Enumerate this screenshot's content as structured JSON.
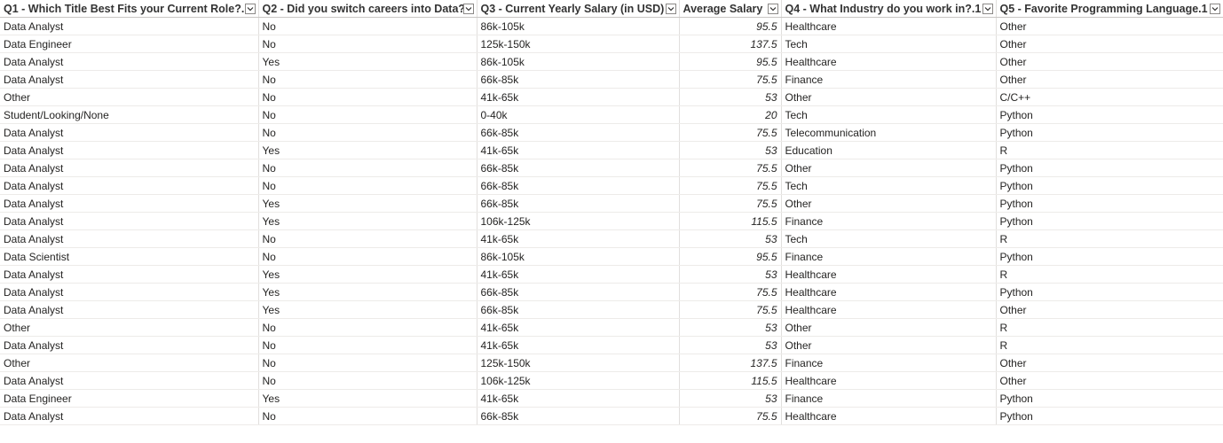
{
  "table": {
    "columns": [
      {
        "label": "Q1 - Which Title Best Fits your Current Role?.1",
        "icon": "chevron-down-icon"
      },
      {
        "label": "Q2 - Did you switch careers into Data?",
        "icon": "chevron-down-icon"
      },
      {
        "label": "Q3 - Current Yearly Salary (in USD)",
        "icon": "chevron-down-icon"
      },
      {
        "label": "Average Salary",
        "icon": "chevron-down-icon"
      },
      {
        "label": "Q4 - What Industry do you work in?.1",
        "icon": "chevron-down-icon"
      },
      {
        "label": "Q5 - Favorite Programming Language.1",
        "icon": "chevron-down-icon"
      }
    ],
    "rows": [
      [
        "Data Analyst",
        "No",
        "86k-105k",
        "95.5",
        "Healthcare",
        "Other"
      ],
      [
        "Data Engineer",
        "No",
        "125k-150k",
        "137.5",
        "Tech",
        "Other"
      ],
      [
        "Data Analyst",
        "Yes",
        "86k-105k",
        "95.5",
        "Healthcare",
        "Other"
      ],
      [
        "Data Analyst",
        "No",
        "66k-85k",
        "75.5",
        "Finance",
        "Other"
      ],
      [
        "Other",
        "No",
        "41k-65k",
        "53",
        "Other",
        "C/C++"
      ],
      [
        "Student/Looking/None",
        "No",
        "0-40k",
        "20",
        "Tech",
        "Python"
      ],
      [
        "Data Analyst",
        "No",
        "66k-85k",
        "75.5",
        "Telecommunication",
        "Python"
      ],
      [
        "Data Analyst",
        "Yes",
        "41k-65k",
        "53",
        "Education",
        "R"
      ],
      [
        "Data Analyst",
        "No",
        "66k-85k",
        "75.5",
        "Other",
        "Python"
      ],
      [
        "Data Analyst",
        "No",
        "66k-85k",
        "75.5",
        "Tech",
        "Python"
      ],
      [
        "Data Analyst",
        "Yes",
        "66k-85k",
        "75.5",
        "Other",
        "Python"
      ],
      [
        "Data Analyst",
        "Yes",
        "106k-125k",
        "115.5",
        "Finance",
        "Python"
      ],
      [
        "Data Analyst",
        "No",
        "41k-65k",
        "53",
        "Tech",
        "R"
      ],
      [
        "Data Scientist",
        "No",
        "86k-105k",
        "95.5",
        "Finance",
        "Python"
      ],
      [
        "Data Analyst",
        "Yes",
        "41k-65k",
        "53",
        "Healthcare",
        "R"
      ],
      [
        "Data Analyst",
        "Yes",
        "66k-85k",
        "75.5",
        "Healthcare",
        "Python"
      ],
      [
        "Data Analyst",
        "Yes",
        "66k-85k",
        "75.5",
        "Healthcare",
        "Other"
      ],
      [
        "Other",
        "No",
        "41k-65k",
        "53",
        "Other",
        "R"
      ],
      [
        "Data Analyst",
        "No",
        "41k-65k",
        "53",
        "Other",
        "R"
      ],
      [
        "Other",
        "No",
        "125k-150k",
        "137.5",
        "Finance",
        "Other"
      ],
      [
        "Data Analyst",
        "No",
        "106k-125k",
        "115.5",
        "Healthcare",
        "Other"
      ],
      [
        "Data Engineer",
        "Yes",
        "41k-65k",
        "53",
        "Finance",
        "Python"
      ],
      [
        "Data Analyst",
        "No",
        "66k-85k",
        "75.5",
        "Healthcare",
        "Python"
      ]
    ]
  }
}
